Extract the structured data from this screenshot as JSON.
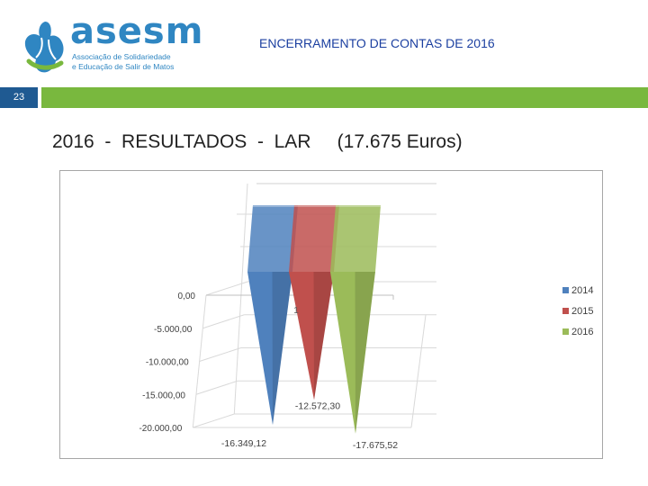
{
  "header": {
    "logo_name": "asesm",
    "logo_line1": "Associação de Solidariedade",
    "logo_line2": "e Educação de Salir de Matos",
    "title": "ENCERRAMENTO DE CONTAS DE 2016"
  },
  "slide": {
    "number": "23",
    "title": "2016  -  RESULTADOS  -  LAR     (17.675 Euros)"
  },
  "colors": {
    "accent_green": "#79b83e",
    "accent_blue": "#1f5a92"
  },
  "chart_data": {
    "type": "bar",
    "categories": [
      "1"
    ],
    "series": [
      {
        "name": "2014",
        "values": [
          -16349.12
        ],
        "color": "#4f81bd"
      },
      {
        "name": "2015",
        "values": [
          -12572.3
        ],
        "color": "#c0504d"
      },
      {
        "name": "2016",
        "values": [
          -17675.52
        ],
        "color": "#9bbb59"
      }
    ],
    "data_labels": [
      "-16.349,12",
      "-12.572,30",
      "-17.675,52"
    ],
    "y_ticks": [
      0,
      -5000,
      -10000,
      -15000,
      -20000
    ],
    "y_tick_labels": [
      "0,00",
      "-5.000,00",
      "-10.000,00",
      "-15.000,00",
      "-20.000,00"
    ],
    "ylim": [
      -20000,
      0
    ],
    "x_tick_label": "1",
    "legend_position": "right",
    "grid": true,
    "title": "",
    "xlabel": "",
    "ylabel": ""
  }
}
